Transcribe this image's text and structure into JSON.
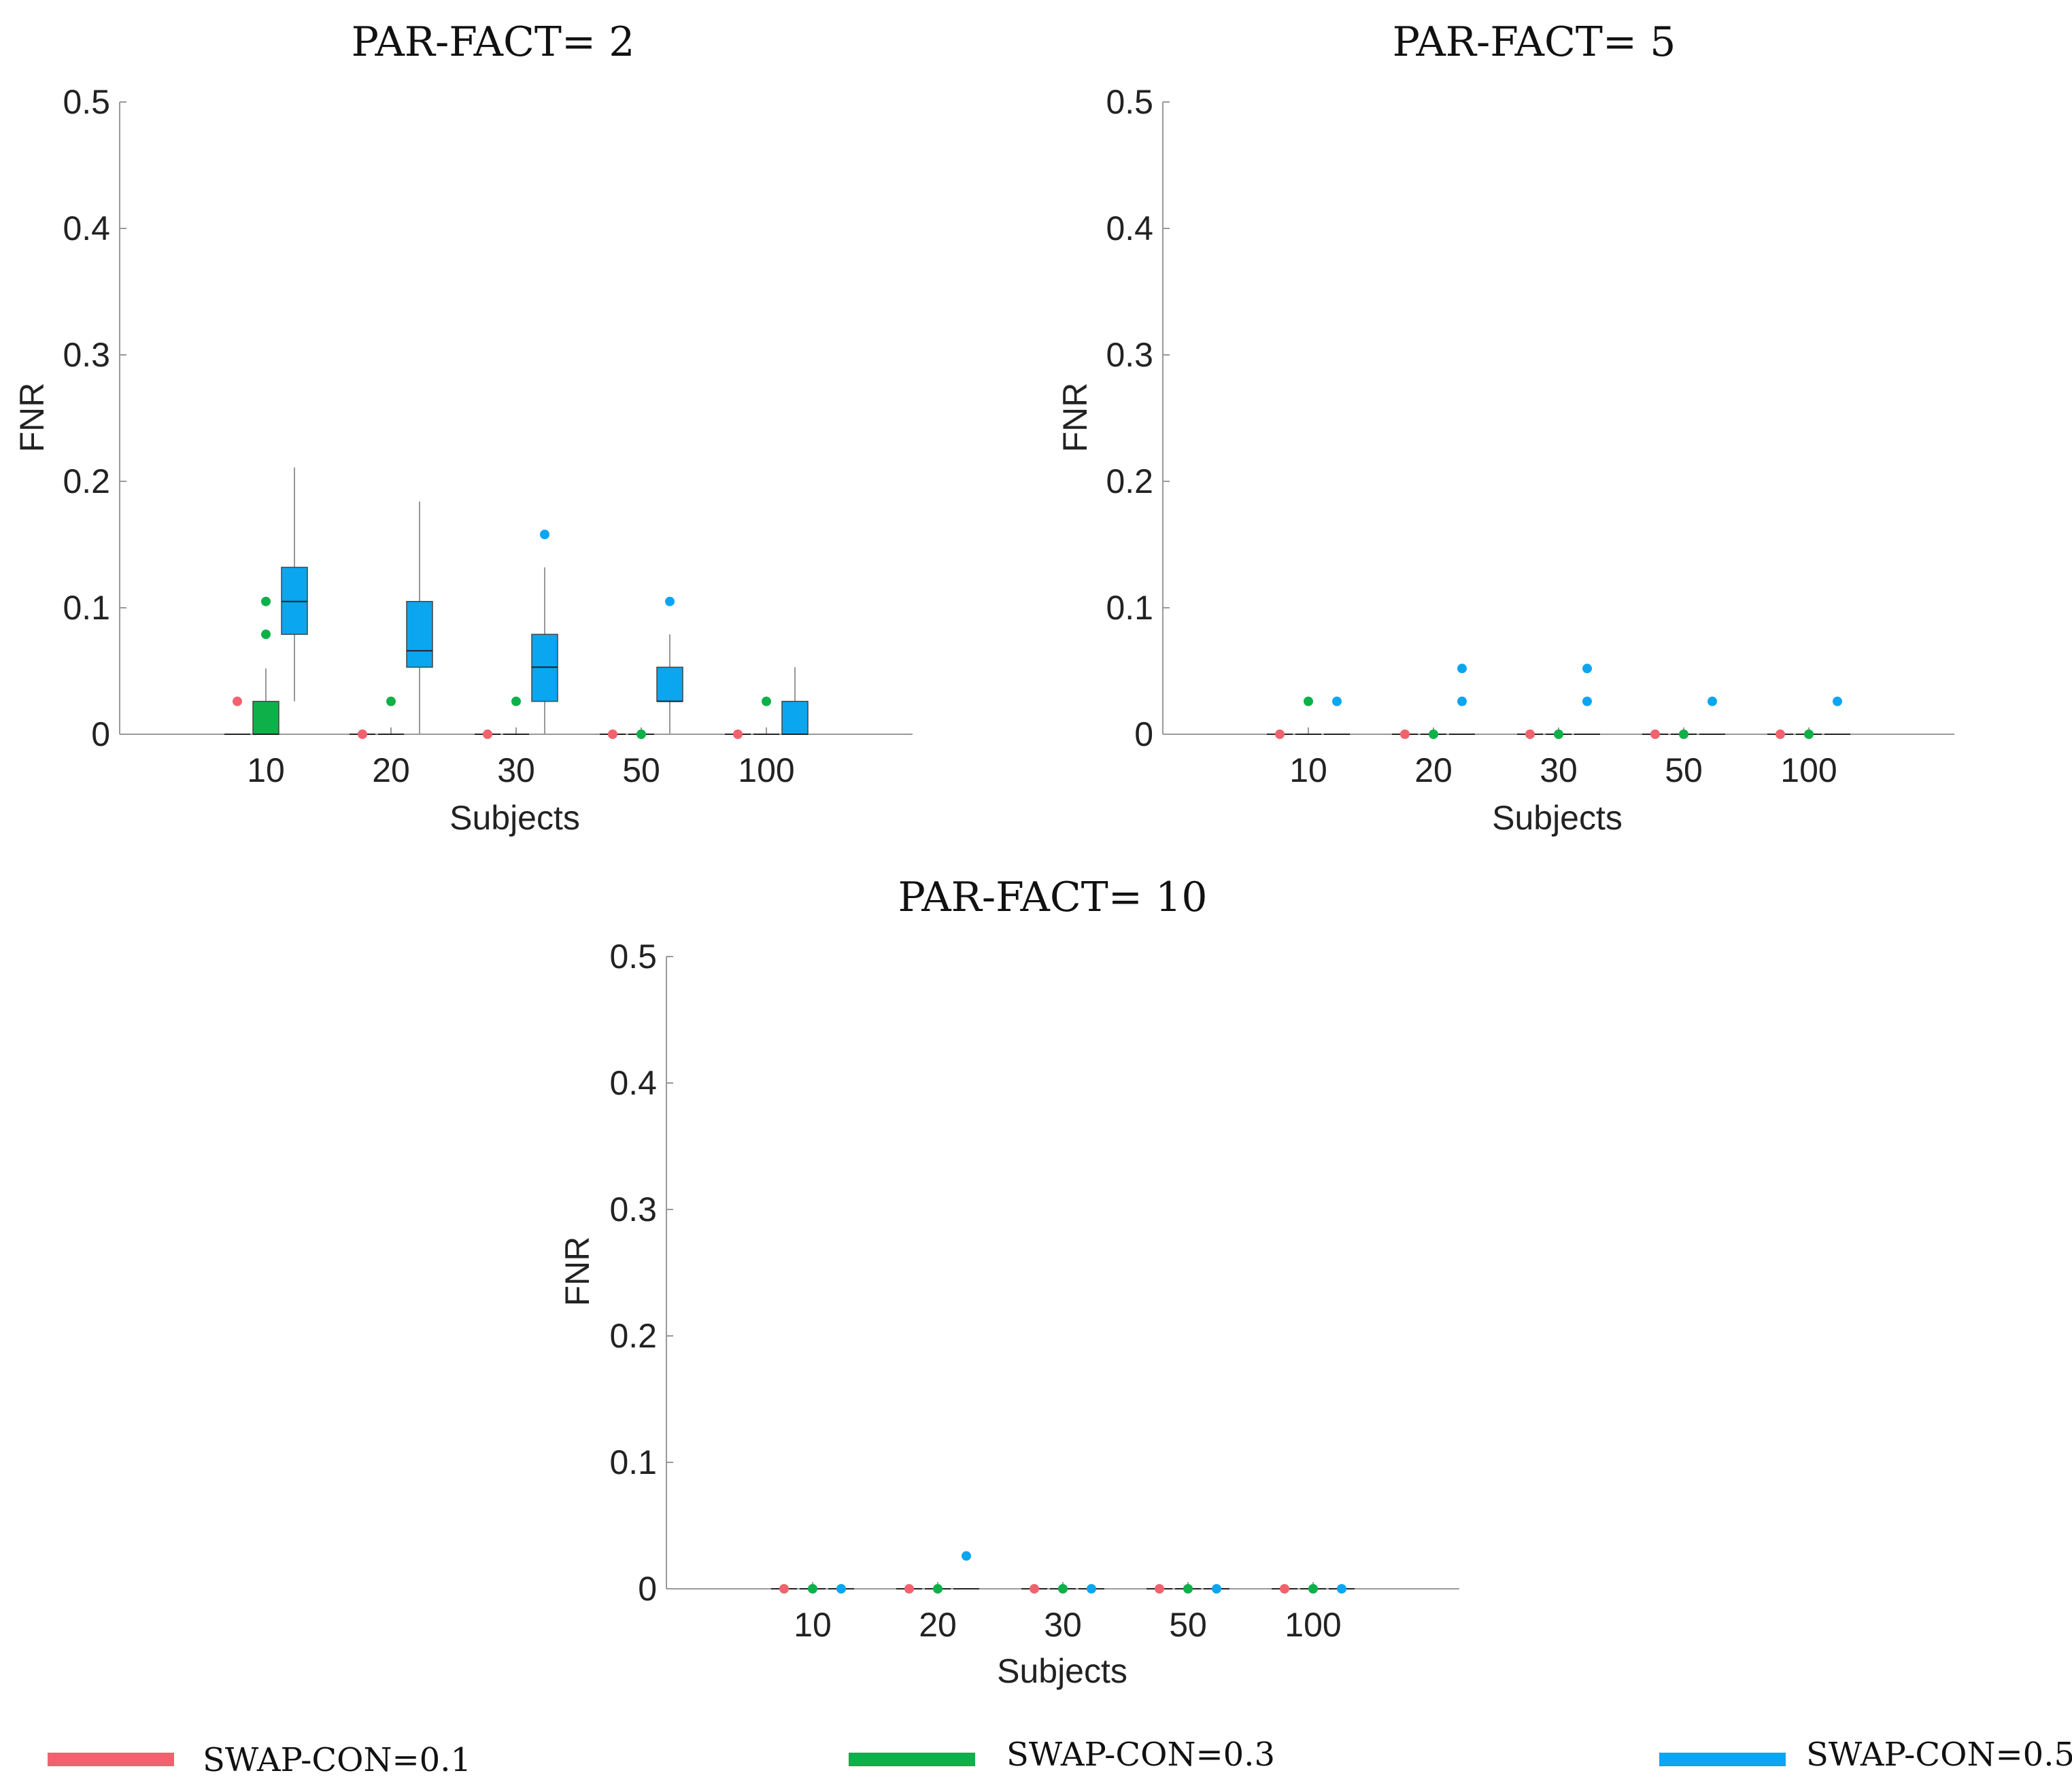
{
  "colors": {
    "swap_0_1": "#f0636e",
    "swap_0_3": "#0eb04a",
    "swap_0_5": "#0aa6f0",
    "axis": "#999999",
    "whisker": "#999999",
    "median": "#222222"
  },
  "legend": [
    {
      "label": "SWAP-CON=0.1",
      "color": "#f0636e"
    },
    {
      "label": "SWAP-CON=0.3",
      "color": "#0eb04a"
    },
    {
      "label": "SWAP-CON=0.5",
      "color": "#0aa6f0"
    }
  ],
  "chart_data": [
    {
      "type": "box",
      "title": "PAR-FACT= 2",
      "xlabel": "Subjects",
      "ylabel": "FNR",
      "ylim": [
        0,
        0.5
      ],
      "yticks": [
        0,
        0.1,
        0.2,
        0.3,
        0.4,
        0.5
      ],
      "categories": [
        "10",
        "20",
        "30",
        "50",
        "100"
      ],
      "series": [
        {
          "name": "SWAP-CON=0.1",
          "boxes": [
            {
              "min": 0,
              "q1": 0,
              "median": 0,
              "q3": 0,
              "max": 0,
              "outliers": [
                0.026
              ]
            },
            {
              "min": 0,
              "q1": 0,
              "median": 0,
              "q3": 0,
              "max": 0,
              "outliers": [
                0
              ]
            },
            {
              "min": 0,
              "q1": 0,
              "median": 0,
              "q3": 0,
              "max": 0,
              "outliers": [
                0
              ]
            },
            {
              "min": 0,
              "q1": 0,
              "median": 0,
              "q3": 0,
              "max": 0,
              "outliers": [
                0
              ]
            },
            {
              "min": 0,
              "q1": 0,
              "median": 0,
              "q3": 0,
              "max": 0,
              "outliers": [
                0
              ]
            }
          ]
        },
        {
          "name": "SWAP-CON=0.3",
          "boxes": [
            {
              "min": 0,
              "q1": 0,
              "median": 0,
              "q3": 0.026,
              "max": 0.052,
              "outliers": [
                0.079,
                0.105
              ]
            },
            {
              "min": 0,
              "q1": 0,
              "median": 0,
              "q3": 0,
              "max": 0.005,
              "outliers": [
                0.026
              ]
            },
            {
              "min": 0,
              "q1": 0,
              "median": 0,
              "q3": 0,
              "max": 0.005,
              "outliers": [
                0.026
              ]
            },
            {
              "min": 0,
              "q1": 0,
              "median": 0,
              "q3": 0,
              "max": 0,
              "outliers": [
                0
              ]
            },
            {
              "min": 0,
              "q1": 0,
              "median": 0,
              "q3": 0,
              "max": 0.005,
              "outliers": [
                0.026
              ]
            }
          ]
        },
        {
          "name": "SWAP-CON=0.5",
          "boxes": [
            {
              "min": 0.026,
              "q1": 0.079,
              "median": 0.105,
              "q3": 0.132,
              "max": 0.211,
              "outliers": []
            },
            {
              "min": 0,
              "q1": 0.053,
              "median": 0.066,
              "q3": 0.105,
              "max": 0.184,
              "outliers": []
            },
            {
              "min": 0,
              "q1": 0.026,
              "median": 0.053,
              "q3": 0.079,
              "max": 0.132,
              "outliers": [
                0.158
              ]
            },
            {
              "min": 0,
              "q1": 0.026,
              "median": 0.026,
              "q3": 0.053,
              "max": 0.079,
              "outliers": [
                0.105
              ]
            },
            {
              "min": 0,
              "q1": 0,
              "median": 0,
              "q3": 0.026,
              "max": 0.053,
              "outliers": []
            }
          ]
        }
      ]
    },
    {
      "type": "box",
      "title": "PAR-FACT= 5",
      "xlabel": "Subjects",
      "ylabel": "FNR",
      "ylim": [
        0,
        0.5
      ],
      "yticks": [
        0,
        0.1,
        0.2,
        0.3,
        0.4,
        0.5
      ],
      "categories": [
        "10",
        "20",
        "30",
        "50",
        "100"
      ],
      "series": [
        {
          "name": "SWAP-CON=0.1",
          "boxes": [
            {
              "min": 0,
              "q1": 0,
              "median": 0,
              "q3": 0,
              "max": 0,
              "outliers": [
                0
              ]
            },
            {
              "min": 0,
              "q1": 0,
              "median": 0,
              "q3": 0,
              "max": 0,
              "outliers": [
                0
              ]
            },
            {
              "min": 0,
              "q1": 0,
              "median": 0,
              "q3": 0,
              "max": 0,
              "outliers": [
                0
              ]
            },
            {
              "min": 0,
              "q1": 0,
              "median": 0,
              "q3": 0,
              "max": 0,
              "outliers": [
                0
              ]
            },
            {
              "min": 0,
              "q1": 0,
              "median": 0,
              "q3": 0,
              "max": 0,
              "outliers": [
                0
              ]
            }
          ]
        },
        {
          "name": "SWAP-CON=0.3",
          "boxes": [
            {
              "min": 0,
              "q1": 0,
              "median": 0,
              "q3": 0,
              "max": 0.005,
              "outliers": [
                0.026
              ]
            },
            {
              "min": 0,
              "q1": 0,
              "median": 0,
              "q3": 0,
              "max": 0,
              "outliers": [
                0
              ]
            },
            {
              "min": 0,
              "q1": 0,
              "median": 0,
              "q3": 0,
              "max": 0,
              "outliers": [
                0
              ]
            },
            {
              "min": 0,
              "q1": 0,
              "median": 0,
              "q3": 0,
              "max": 0,
              "outliers": [
                0
              ]
            },
            {
              "min": 0,
              "q1": 0,
              "median": 0,
              "q3": 0,
              "max": 0,
              "outliers": [
                0
              ]
            }
          ]
        },
        {
          "name": "SWAP-CON=0.5",
          "boxes": [
            {
              "min": 0,
              "q1": 0,
              "median": 0,
              "q3": 0,
              "max": 0,
              "outliers": [
                0.026
              ]
            },
            {
              "min": 0,
              "q1": 0,
              "median": 0,
              "q3": 0,
              "max": 0,
              "outliers": [
                0.026,
                0.052
              ]
            },
            {
              "min": 0,
              "q1": 0,
              "median": 0,
              "q3": 0,
              "max": 0,
              "outliers": [
                0.026,
                0.052
              ]
            },
            {
              "min": 0,
              "q1": 0,
              "median": 0,
              "q3": 0,
              "max": 0,
              "outliers": [
                0.026
              ]
            },
            {
              "min": 0,
              "q1": 0,
              "median": 0,
              "q3": 0,
              "max": 0,
              "outliers": [
                0.026
              ]
            }
          ]
        }
      ]
    },
    {
      "type": "box",
      "title": "PAR-FACT= 10",
      "xlabel": "Subjects",
      "ylabel": "FNR",
      "ylim": [
        0,
        0.5
      ],
      "yticks": [
        0,
        0.1,
        0.2,
        0.3,
        0.4,
        0.5
      ],
      "categories": [
        "10",
        "20",
        "30",
        "50",
        "100"
      ],
      "series": [
        {
          "name": "SWAP-CON=0.1",
          "boxes": [
            {
              "min": 0,
              "q1": 0,
              "median": 0,
              "q3": 0,
              "max": 0,
              "outliers": [
                0
              ]
            },
            {
              "min": 0,
              "q1": 0,
              "median": 0,
              "q3": 0,
              "max": 0,
              "outliers": [
                0
              ]
            },
            {
              "min": 0,
              "q1": 0,
              "median": 0,
              "q3": 0,
              "max": 0,
              "outliers": [
                0
              ]
            },
            {
              "min": 0,
              "q1": 0,
              "median": 0,
              "q3": 0,
              "max": 0,
              "outliers": [
                0
              ]
            },
            {
              "min": 0,
              "q1": 0,
              "median": 0,
              "q3": 0,
              "max": 0,
              "outliers": [
                0
              ]
            }
          ]
        },
        {
          "name": "SWAP-CON=0.3",
          "boxes": [
            {
              "min": 0,
              "q1": 0,
              "median": 0,
              "q3": 0,
              "max": 0,
              "outliers": [
                0
              ]
            },
            {
              "min": 0,
              "q1": 0,
              "median": 0,
              "q3": 0,
              "max": 0,
              "outliers": [
                0
              ]
            },
            {
              "min": 0,
              "q1": 0,
              "median": 0,
              "q3": 0,
              "max": 0,
              "outliers": [
                0
              ]
            },
            {
              "min": 0,
              "q1": 0,
              "median": 0,
              "q3": 0,
              "max": 0,
              "outliers": [
                0
              ]
            },
            {
              "min": 0,
              "q1": 0,
              "median": 0,
              "q3": 0,
              "max": 0,
              "outliers": [
                0
              ]
            }
          ]
        },
        {
          "name": "SWAP-CON=0.5",
          "boxes": [
            {
              "min": 0,
              "q1": 0,
              "median": 0,
              "q3": 0,
              "max": 0,
              "outliers": [
                0
              ]
            },
            {
              "min": 0,
              "q1": 0,
              "median": 0,
              "q3": 0,
              "max": 0,
              "outliers": [
                0.026
              ]
            },
            {
              "min": 0,
              "q1": 0,
              "median": 0,
              "q3": 0,
              "max": 0,
              "outliers": [
                0
              ]
            },
            {
              "min": 0,
              "q1": 0,
              "median": 0,
              "q3": 0,
              "max": 0,
              "outliers": [
                0
              ]
            },
            {
              "min": 0,
              "q1": 0,
              "median": 0,
              "q3": 0,
              "max": 0,
              "outliers": [
                0
              ]
            }
          ]
        }
      ]
    }
  ]
}
